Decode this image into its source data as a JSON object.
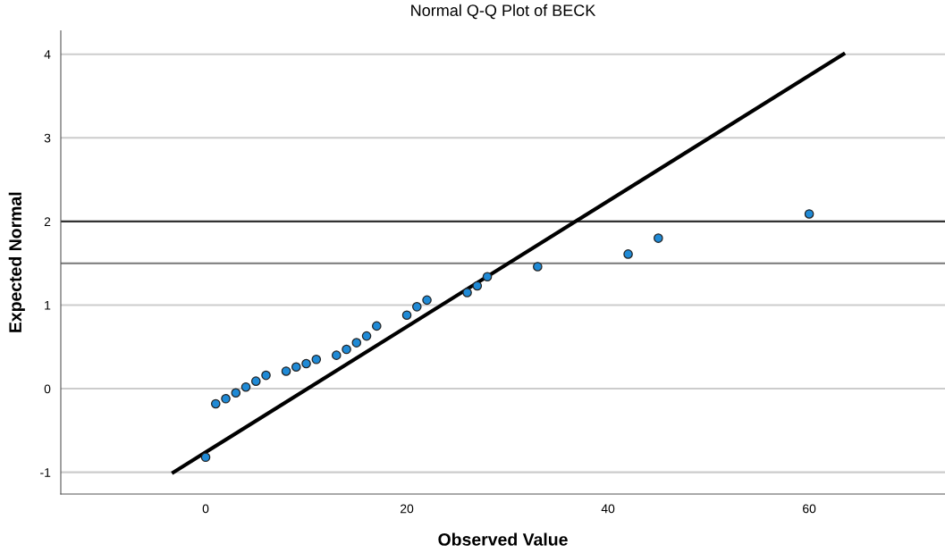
{
  "chart_data": {
    "type": "scatter",
    "title": "Normal Q-Q Plot of BECK",
    "xlabel": "Observed Value",
    "ylabel": "Expected Normal",
    "xlim": [
      -14.4,
      73.5
    ],
    "ylim": [
      -1.26,
      4.28
    ],
    "xticks": [
      0,
      20,
      40,
      60
    ],
    "yticks": [
      -1,
      0,
      1,
      2,
      3,
      4
    ],
    "grid": "y",
    "series": [
      {
        "marker": "circle",
        "color": "#1f8ad6",
        "x": [
          0,
          1,
          2,
          3,
          4,
          5,
          6,
          8,
          9,
          10,
          11,
          13,
          14,
          15,
          16,
          17,
          20,
          21,
          22,
          26,
          27,
          28,
          33,
          42,
          45,
          60
        ],
        "values": [
          -0.82,
          -0.18,
          -0.12,
          -0.05,
          0.02,
          0.09,
          0.16,
          0.21,
          0.26,
          0.3,
          0.35,
          0.4,
          0.47,
          0.55,
          0.63,
          0.75,
          0.88,
          0.98,
          1.06,
          1.15,
          1.23,
          1.34,
          1.46,
          1.61,
          1.8,
          2.09
        ]
      },
      {
        "type": "line",
        "color": "#000000",
        "x": [
          -3.2,
          63.4
        ],
        "values": [
          -1,
          4
        ]
      }
    ],
    "ref_lines": [
      {
        "axis": "y",
        "value": 2,
        "color": "#333333"
      },
      {
        "axis": "y",
        "value": 1.5,
        "color": "#777777"
      }
    ]
  }
}
